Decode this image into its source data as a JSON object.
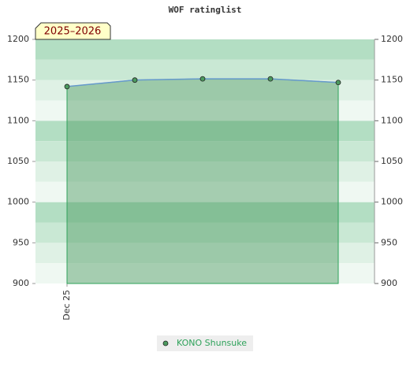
{
  "chart_data": {
    "type": "area",
    "title": "WOF ratinglist",
    "annotation": "2025–2026",
    "categories": [
      "Dec 25",
      null,
      null,
      null,
      null
    ],
    "series": [
      {
        "name": "KONO Shunsuke",
        "color": "#4c9a5f",
        "values": [
          1142,
          1150,
          1151.5,
          1151.5,
          1147
        ]
      }
    ],
    "ylim": [
      900,
      1200
    ],
    "yticks": [
      900,
      950,
      1000,
      1050,
      1100,
      1150,
      1200
    ],
    "y2lim": [
      900,
      1200
    ],
    "y2ticks": [
      900,
      950,
      1000,
      1050,
      1100,
      1150,
      1200
    ],
    "grid": true
  }
}
